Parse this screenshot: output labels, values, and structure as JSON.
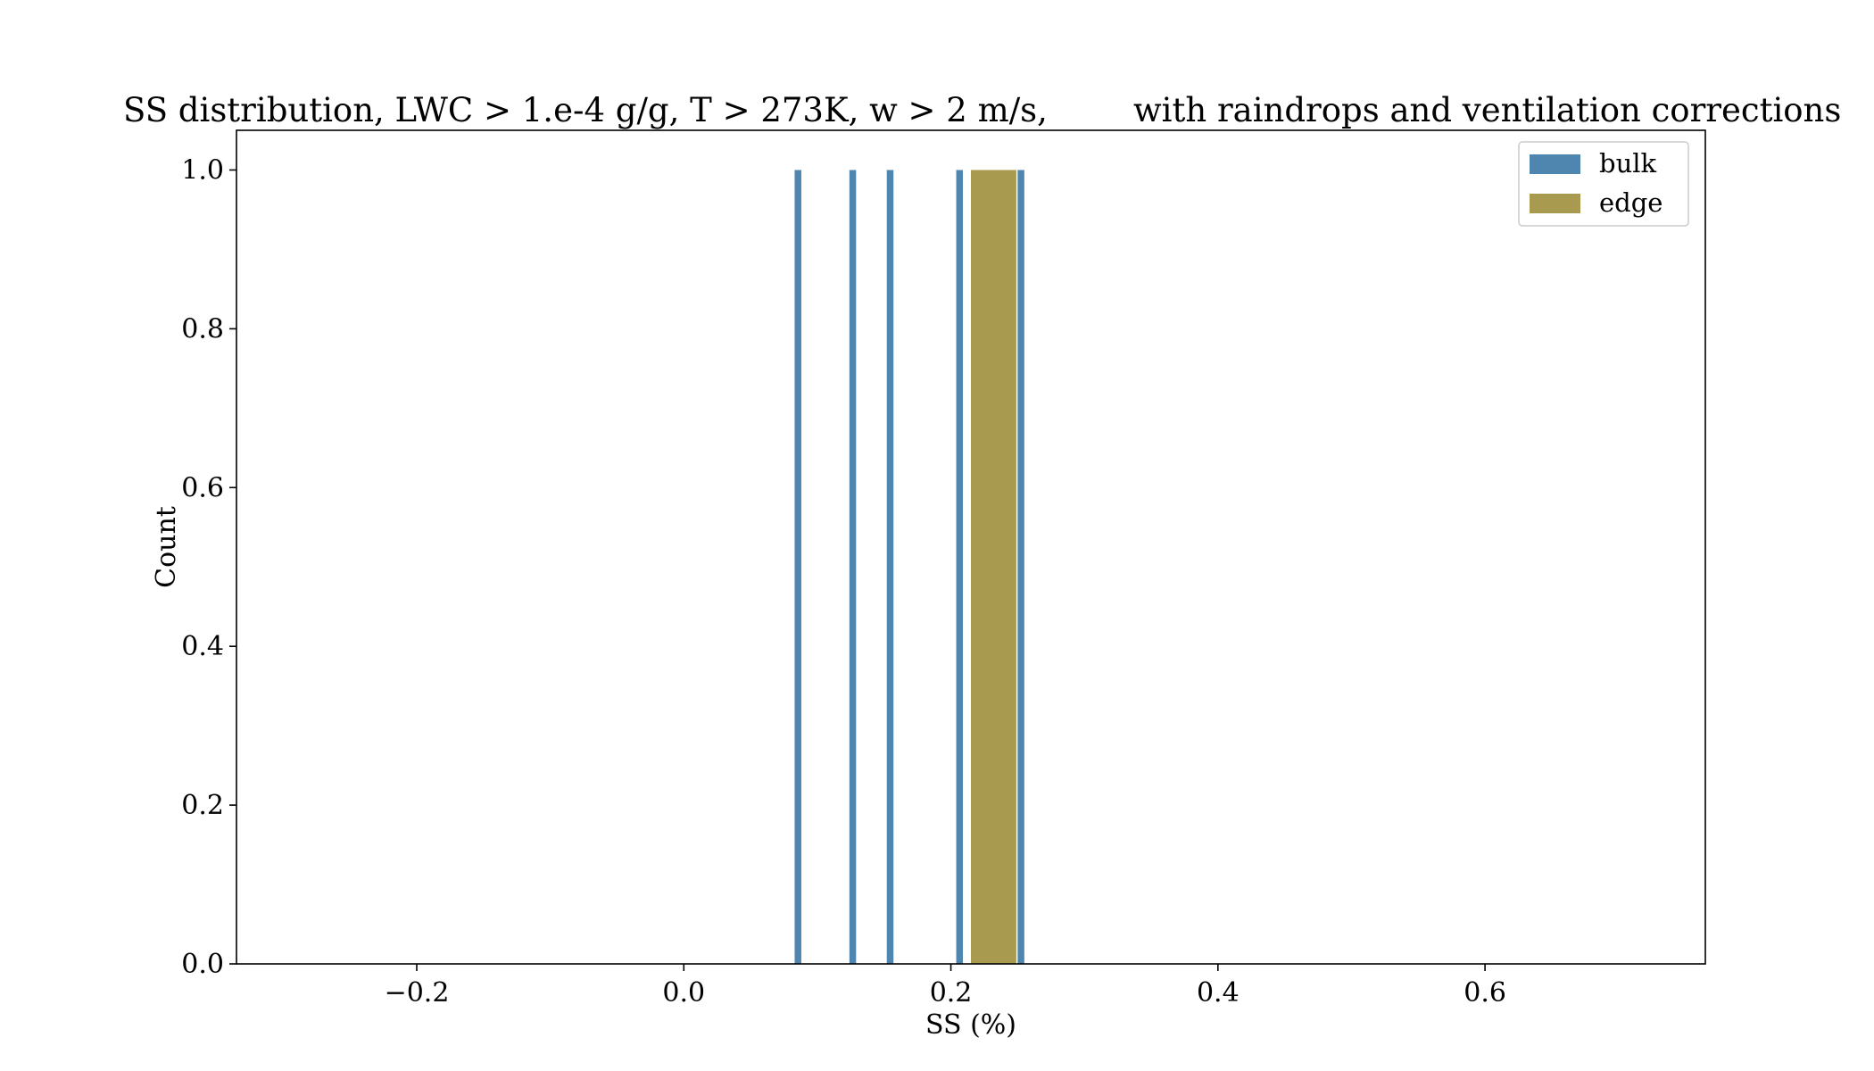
{
  "chart_data": {
    "type": "bar",
    "title_left": "SS distribution, LWC > 1.e-4 g/g, T > 273K, w > 2 m/s,",
    "title_right": "with raindrops and ventilation corrections",
    "xlabel": "SS (%)",
    "ylabel": "Count",
    "xlim": [
      -0.335,
      0.765
    ],
    "ylim": [
      0,
      1.05
    ],
    "xticks": [
      -0.2,
      0.0,
      0.2,
      0.4,
      0.6
    ],
    "xtick_labels": [
      "−0.2",
      "0.0",
      "0.2",
      "0.4",
      "0.6"
    ],
    "yticks": [
      0.0,
      0.2,
      0.4,
      0.6,
      0.8,
      1.0
    ],
    "ytick_labels": [
      "0.0",
      "0.2",
      "0.4",
      "0.6",
      "0.8",
      "1.0"
    ],
    "grid": false,
    "legend_position": "top-right",
    "series": [
      {
        "name": "bulk",
        "color": "#4f86b0",
        "bins": [
          {
            "x0": 0.083,
            "x1": 0.088,
            "value": 1
          },
          {
            "x0": 0.124,
            "x1": 0.129,
            "value": 1
          },
          {
            "x0": 0.152,
            "x1": 0.157,
            "value": 1
          },
          {
            "x0": 0.204,
            "x1": 0.209,
            "value": 1
          },
          {
            "x0": 0.25,
            "x1": 0.255,
            "value": 1
          }
        ]
      },
      {
        "name": "edge",
        "color": "#a89a4e",
        "bins": [
          {
            "x0": 0.215,
            "x1": 0.249,
            "value": 1
          }
        ]
      }
    ]
  }
}
